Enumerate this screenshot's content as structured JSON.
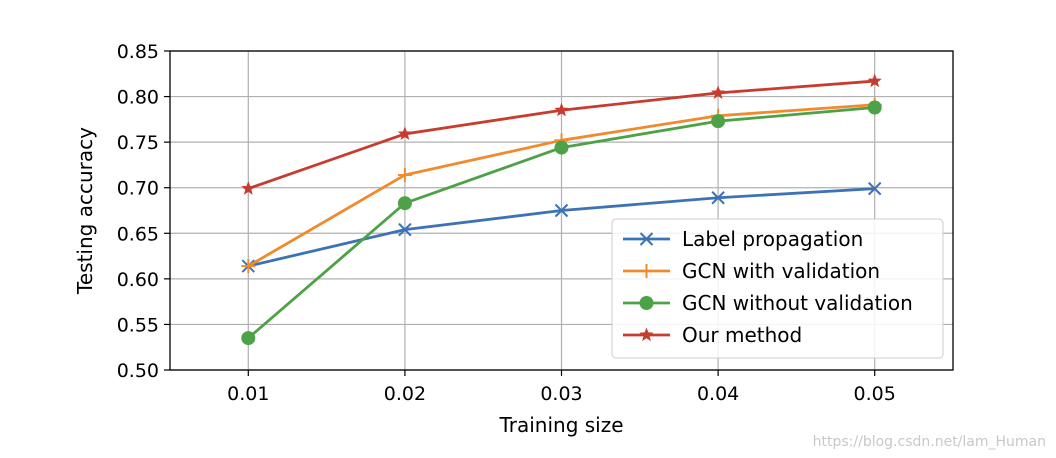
{
  "chart_data": {
    "type": "line",
    "title": "",
    "xlabel": "Training size",
    "ylabel": "Testing accuracy",
    "x": [
      0.01,
      0.02,
      0.03,
      0.04,
      0.05
    ],
    "x_tick_labels": [
      "0.01",
      "0.02",
      "0.03",
      "0.04",
      "0.05"
    ],
    "xlim": [
      0.005,
      0.055
    ],
    "ylim": [
      0.5,
      0.85
    ],
    "y_ticks": [
      0.5,
      0.55,
      0.6,
      0.65,
      0.7,
      0.75,
      0.8,
      0.85
    ],
    "y_tick_labels": [
      "0.50",
      "0.55",
      "0.60",
      "0.65",
      "0.70",
      "0.75",
      "0.80",
      "0.85"
    ],
    "grid": true,
    "legend_position": "lower-right",
    "series": [
      {
        "name": "Label propagation",
        "values": [
          0.614,
          0.654,
          0.675,
          0.689,
          0.699
        ],
        "color": "#3d72b4",
        "marker": "x"
      },
      {
        "name": "GCN with validation",
        "values": [
          0.614,
          0.714,
          0.752,
          0.779,
          0.791
        ],
        "color": "#f08a2d",
        "marker": "plus"
      },
      {
        "name": "GCN without validation",
        "values": [
          0.535,
          0.683,
          0.744,
          0.773,
          0.788
        ],
        "color": "#4da146",
        "marker": "circle"
      },
      {
        "name": "Our method",
        "values": [
          0.699,
          0.759,
          0.785,
          0.804,
          0.817
        ],
        "color": "#c83c30",
        "marker": "star"
      }
    ]
  },
  "watermark": "https://blog.csdn.net/lam_Human"
}
